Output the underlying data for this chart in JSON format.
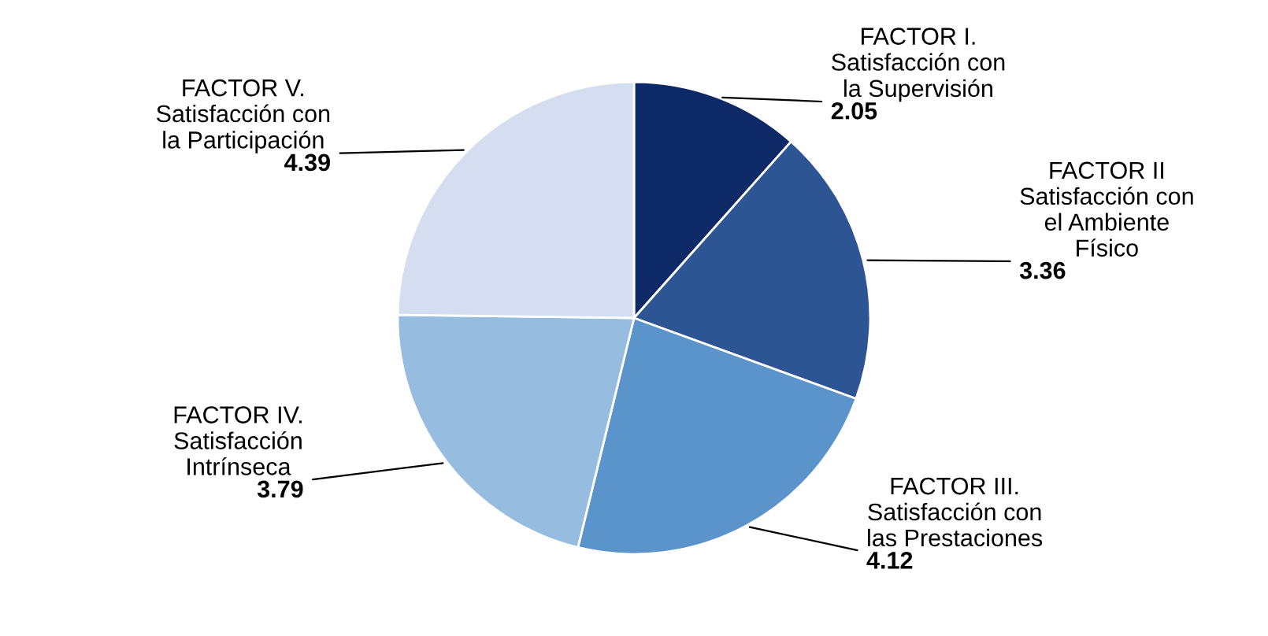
{
  "chart_data": {
    "type": "pie",
    "categories": [
      "FACTOR I.\nSatisfacción con\nla Supervisión",
      "FACTOR II\nSatisfacción con\nel Ambiente\nFísico",
      "FACTOR III.\nSatisfacción con\nlas Prestaciones",
      "FACTOR IV.\nSatisfacción\nIntrínseca",
      "FACTOR V.\nSatisfacción con\nla Participación"
    ],
    "values": [
      2.05,
      3.36,
      4.12,
      3.79,
      4.39
    ],
    "colors": [
      "#0e2a66",
      "#2e5593",
      "#5a94cb",
      "#96bddf",
      "#d4def0"
    ],
    "data_labels": true
  }
}
